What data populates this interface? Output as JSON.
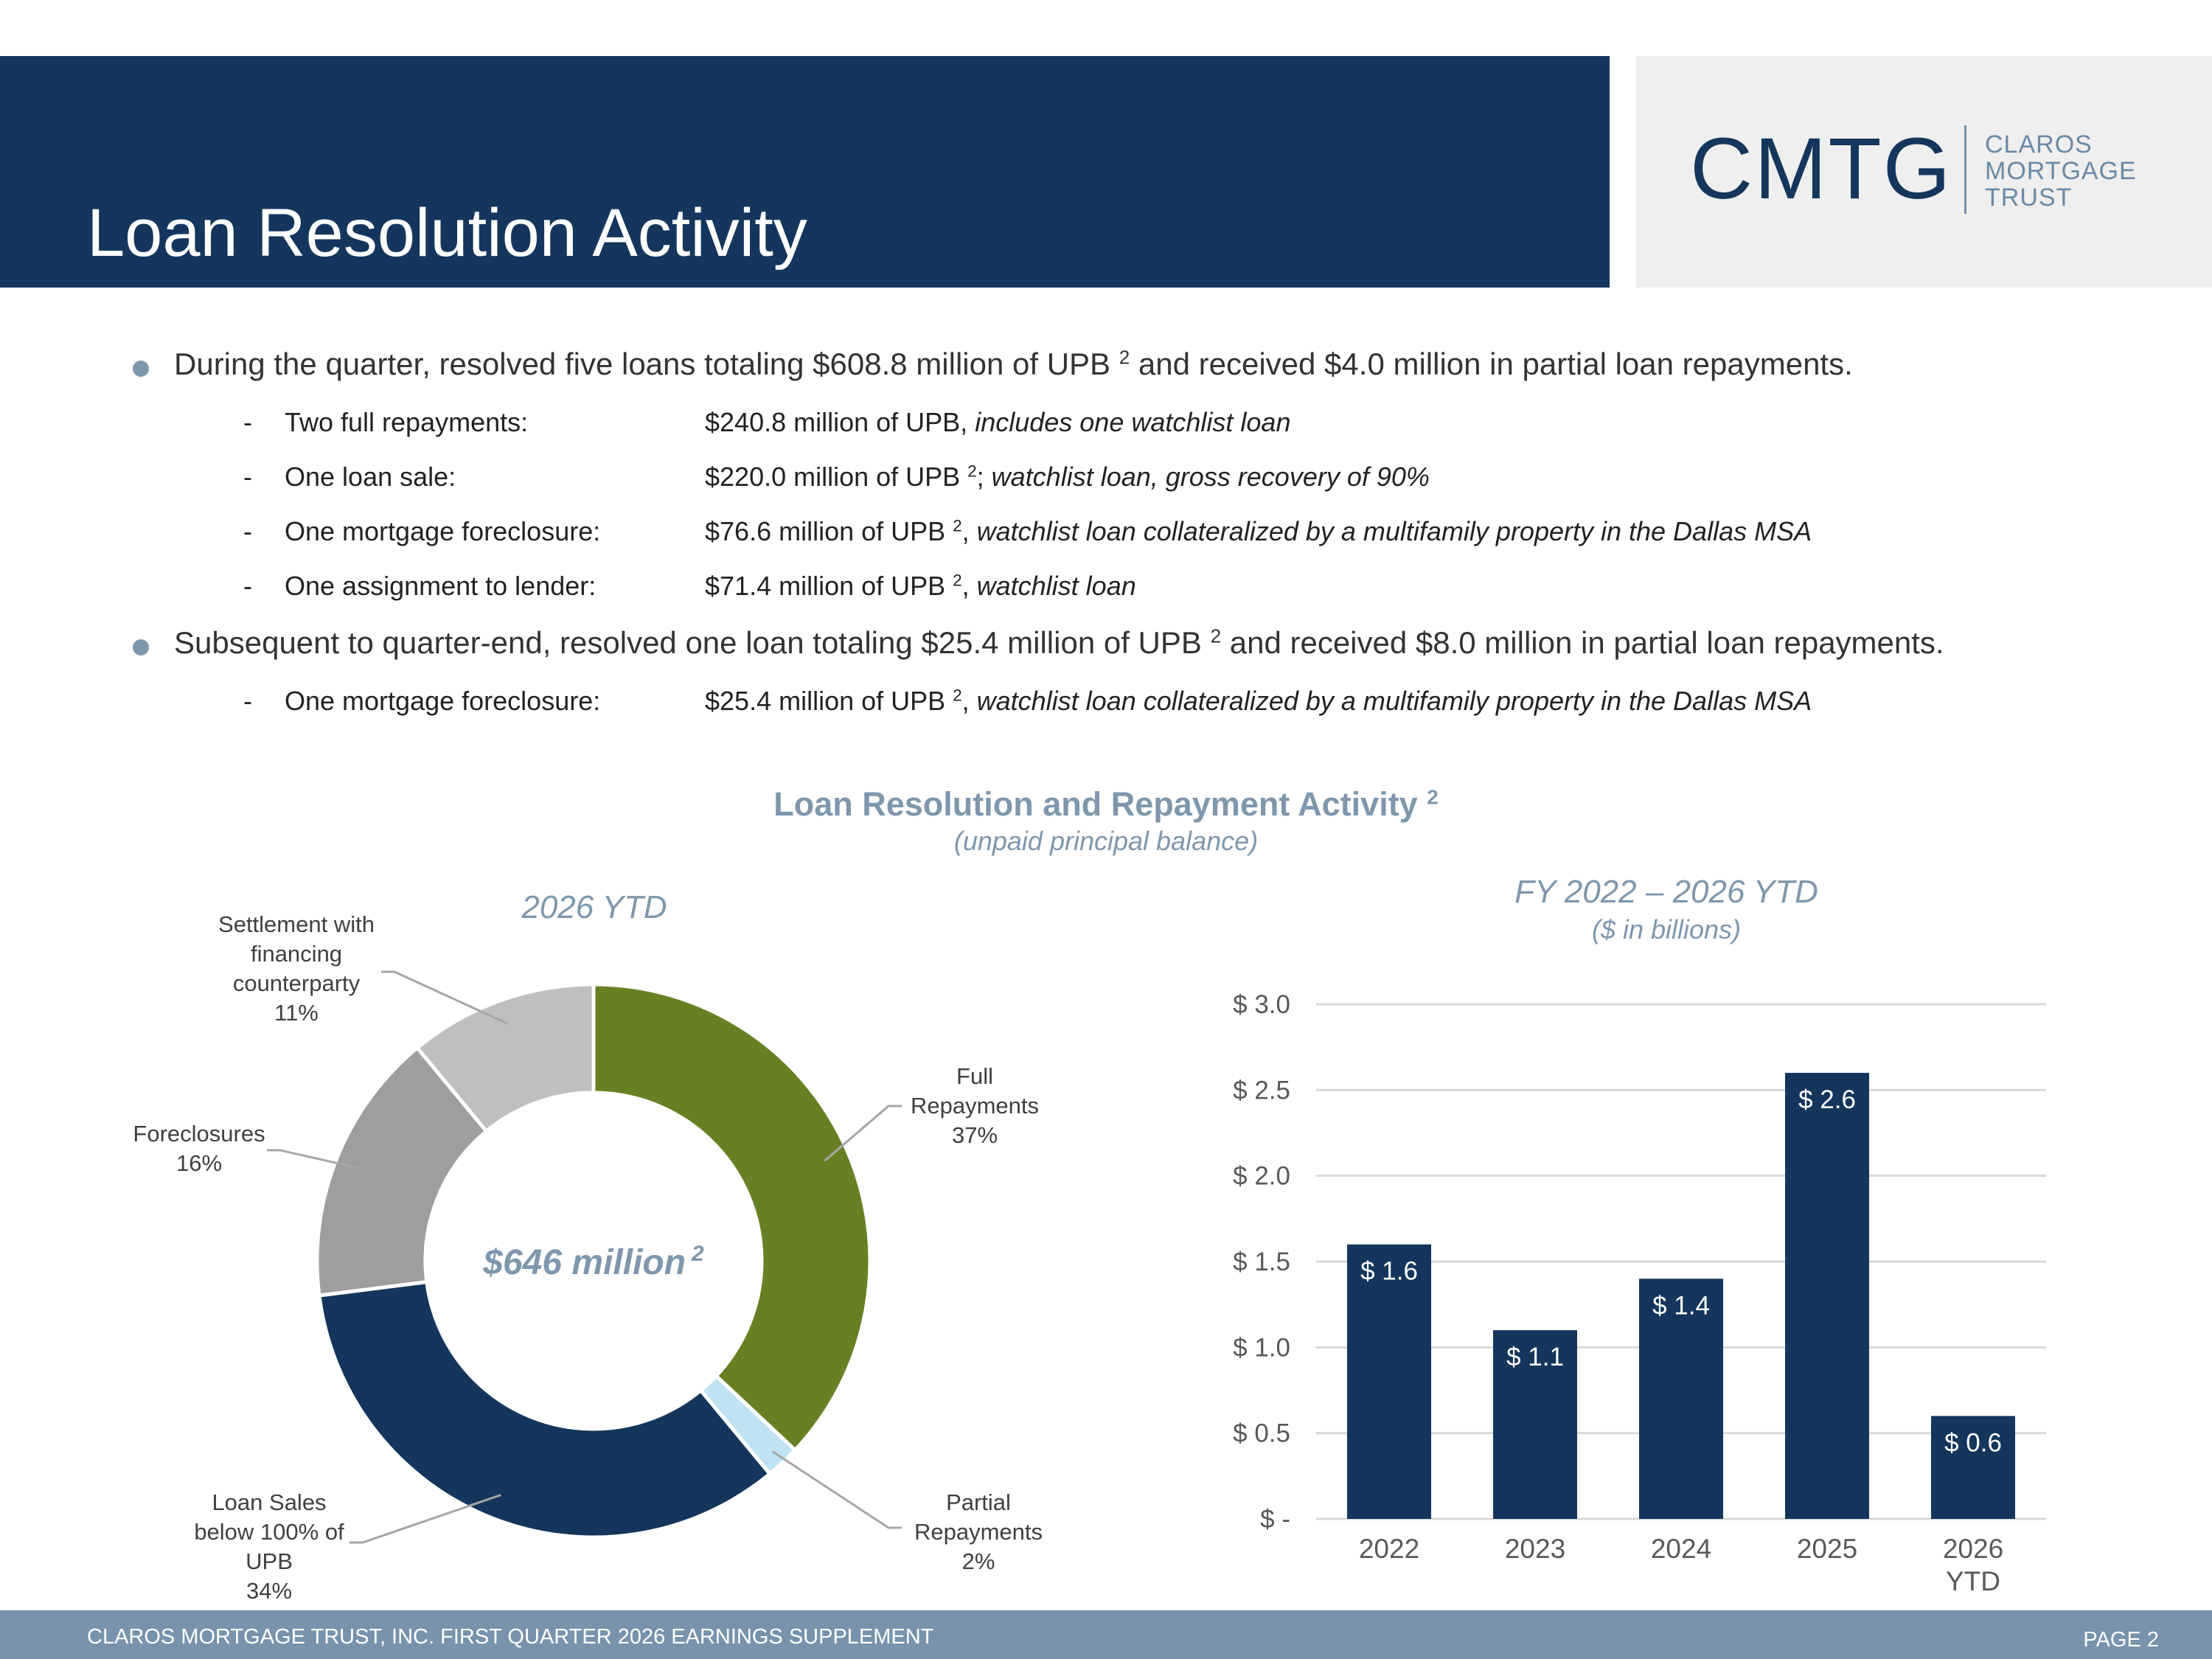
{
  "header": {
    "title": "Loan Resolution Activity"
  },
  "logo": {
    "mark": "CMTG",
    "words": [
      "CLAROS",
      "MORTGAGE",
      "TRUST"
    ]
  },
  "bullets": [
    {
      "pre": "During the quarter, resolved five loans totaling $608.8 million of UPB",
      "sup": "2",
      "post": " and received $4.0 million in partial loan repayments.",
      "items": [
        {
          "label": "Two full repayments:",
          "value": "$240.8 million of UPB,",
          "sup": "",
          "sep": "",
          "note": "includes one watchlist loan"
        },
        {
          "label": "One loan sale:",
          "value": "$220.0 million of UPB",
          "sup": "2",
          "sep": ";",
          "note": "watchlist loan, gross recovery of 90%"
        },
        {
          "label": "One mortgage foreclosure:",
          "value": "$76.6 million of UPB",
          "sup": "2",
          "sep": ",",
          "note": "watchlist loan collateralized by a multifamily property in the Dallas MSA"
        },
        {
          "label": "One assignment to lender:",
          "value": "$71.4 million of UPB",
          "sup": "2",
          "sep": ",",
          "note": "watchlist loan"
        }
      ]
    },
    {
      "pre": "Subsequent to quarter-end, resolved one loan totaling $25.4 million of UPB",
      "sup": "2",
      "post": " and received $8.0 million in partial loan repayments.",
      "items": [
        {
          "label": "One mortgage foreclosure:",
          "value": "$25.4 million of UPB",
          "sup": "2",
          "sep": ",",
          "note": "watchlist loan collateralized by a multifamily property in the Dallas MSA"
        }
      ]
    }
  ],
  "charts_header": {
    "title": "Loan Resolution and Repayment Activity",
    "title_sup": "2",
    "subtitle": "(unpaid principal balance)"
  },
  "chart_data": [
    {
      "type": "pie",
      "title": "2026 YTD",
      "center_label": "$646 million",
      "center_sup": "2",
      "slices": [
        {
          "label": "Full Repayments",
          "value": 37,
          "display": "37%",
          "color": "#688024"
        },
        {
          "label": "Partial Repayments",
          "value": 2,
          "display": "2%",
          "color": "#bfe3f3"
        },
        {
          "label": "Loan Sales below 100% of UPB",
          "value": 34,
          "display": "34%",
          "color": "#15365c"
        },
        {
          "label": "Foreclosures",
          "value": 16,
          "display": "16%",
          "color": "#9e9e9e"
        },
        {
          "label": "Settlement with financing counterparty",
          "value": 11,
          "display": "11%",
          "color": "#bfbfbf"
        }
      ]
    },
    {
      "type": "bar",
      "title": "FY 2022 – 2026 YTD",
      "subtitle": "($ in billions)",
      "categories": [
        "2022",
        "2023",
        "2024",
        "2025",
        "2026 YTD"
      ],
      "values": [
        1.6,
        1.1,
        1.4,
        2.6,
        0.6
      ],
      "value_labels": [
        "$ 1.6",
        "$ 1.1",
        "$ 1.4",
        "$ 2.6",
        "$ 0.6"
      ],
      "ylim": [
        0,
        3.0
      ],
      "yticks": [
        0,
        0.5,
        1.0,
        1.5,
        2.0,
        2.5,
        3.0
      ],
      "ytick_labels": [
        "$ -",
        "$ 0.5",
        "$ 1.0",
        "$ 1.5",
        "$ 2.0",
        "$ 2.5",
        "$ 3.0"
      ],
      "grid": true,
      "bar_color": "#15365c"
    }
  ],
  "footer": {
    "left": "CLAROS MORTGAGE TRUST, INC. FIRST QUARTER 2026 EARNINGS SUPPLEMENT",
    "right": "PAGE 2"
  }
}
